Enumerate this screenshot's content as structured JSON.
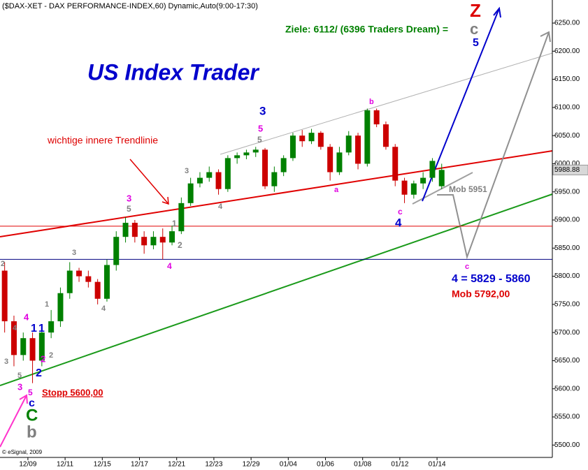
{
  "chart_data": {
    "type": "candlestick",
    "title": "($DAX-XET - DAX PERFORMANCE-INDEX,60) Dynamic,Auto(9:00-17:30)",
    "credit": "© eSignal, 2009",
    "x": [
      -1.25,
      -0.75,
      -0.25,
      0.25,
      0.75,
      1.25,
      1.75,
      2.25,
      2.75,
      3.25,
      3.75,
      4.25,
      4.75,
      5.25,
      5.75,
      6.25,
      6.75,
      7.25,
      7.75,
      8.25,
      8.75,
      9.25,
      9.75,
      10.25,
      10.75,
      11.25,
      11.75,
      12.25,
      12.75,
      13.25,
      13.75,
      14.25,
      14.75,
      15.25,
      15.75,
      16.25,
      16.75,
      17.25,
      17.75,
      18.25,
      18.75,
      19.25,
      19.75,
      20.25,
      20.75,
      21.25,
      21.75,
      22.25
    ],
    "open": [
      5810,
      5720,
      5660,
      5690,
      5650,
      5700,
      5720,
      5770,
      5810,
      5800,
      5790,
      5760,
      5820,
      5870,
      5895,
      5870,
      5855,
      5870,
      5860,
      5880,
      5930,
      5965,
      5975,
      5985,
      5955,
      6010,
      6015,
      6020,
      6025,
      5960,
      5985,
      6010,
      6050,
      6040,
      6055,
      6030,
      5985,
      6020,
      6050,
      6000,
      6095,
      6070,
      6030,
      5970,
      5945,
      5965,
      5975,
      5960
    ],
    "high": [
      5825,
      5730,
      5700,
      5700,
      5710,
      5740,
      5780,
      5825,
      5815,
      5810,
      5795,
      5830,
      5880,
      5905,
      5900,
      5880,
      5880,
      5885,
      5890,
      5940,
      5975,
      5985,
      5995,
      5990,
      6015,
      6020,
      6025,
      6030,
      6028,
      5995,
      6015,
      6055,
      6060,
      6062,
      6058,
      6035,
      6030,
      6058,
      6055,
      6098,
      6098,
      6075,
      6035,
      5975,
      5970,
      5985,
      6010,
      6000
    ],
    "low": [
      5700,
      5640,
      5650,
      5610,
      5640,
      5690,
      5710,
      5760,
      5790,
      5780,
      5750,
      5755,
      5810,
      5860,
      5860,
      5840,
      5848,
      5830,
      5855,
      5875,
      5925,
      5958,
      5968,
      5945,
      5950,
      6000,
      6008,
      6012,
      5955,
      5950,
      5978,
      6005,
      6030,
      6035,
      6025,
      5970,
      5980,
      6015,
      5990,
      5995,
      6065,
      6025,
      5960,
      5930,
      5938,
      5955,
      5968,
      5955
    ],
    "close": [
      5720,
      5660,
      5690,
      5650,
      5700,
      5720,
      5770,
      5810,
      5800,
      5790,
      5760,
      5820,
      5870,
      5895,
      5870,
      5855,
      5870,
      5860,
      5880,
      5930,
      5965,
      5975,
      5985,
      5955,
      6010,
      6015,
      6020,
      6025,
      5960,
      5985,
      6010,
      6050,
      6040,
      6055,
      6030,
      5985,
      6020,
      6050,
      6000,
      6095,
      6070,
      6030,
      5970,
      5945,
      5965,
      5975,
      6005,
      5989
    ],
    "up_color": "#008000",
    "down_color": "#cc0000",
    "last_value": 5988.88,
    "levels": [
      {
        "value": 5889,
        "color": "#e00000"
      },
      {
        "value": 5830,
        "color": "#000080"
      }
    ],
    "xlim": [
      -1.5,
      28.2
    ],
    "ylim": [
      5478,
      6291
    ],
    "xticks": [
      {
        "value": 0,
        "label": "12/09"
      },
      {
        "value": 2,
        "label": "12/11"
      },
      {
        "value": 4,
        "label": "12/15"
      },
      {
        "value": 6,
        "label": "12/17"
      },
      {
        "value": 8,
        "label": "12/21"
      },
      {
        "value": 10,
        "label": "12/23"
      },
      {
        "value": 12,
        "label": "12/29"
      },
      {
        "value": 14,
        "label": "01/04"
      },
      {
        "value": 16,
        "label": "01/06"
      },
      {
        "value": 18,
        "label": "01/08"
      },
      {
        "value": 20,
        "label": "01/12"
      },
      {
        "value": 22,
        "label": "01/14"
      }
    ],
    "yticks": [
      {
        "value": 5500,
        "label": "5500.00"
      },
      {
        "value": 5550,
        "label": "5550.00"
      },
      {
        "value": 5600,
        "label": "5600.00"
      },
      {
        "value": 5650,
        "label": "5650.00"
      },
      {
        "value": 5700,
        "label": "5700.00"
      },
      {
        "value": 5750,
        "label": "5750.00"
      },
      {
        "value": 5800,
        "label": "5800.00"
      },
      {
        "value": 5850,
        "label": "5850.00"
      },
      {
        "value": 5900,
        "label": "5900.00"
      },
      {
        "value": 5950,
        "label": "5950.00"
      },
      {
        "value": 6000,
        "label": "6000.00"
      },
      {
        "value": 6050,
        "label": "6050.00"
      },
      {
        "value": 6100,
        "label": "6100.00"
      },
      {
        "value": 6150,
        "label": "6150.00"
      },
      {
        "value": 6200,
        "label": "6200.00"
      },
      {
        "value": 6250,
        "label": "6250.00"
      }
    ],
    "annotations": [
      {
        "text": "US Index Trader",
        "color": "#0000cc"
      },
      {
        "text": "wichtige innere Trendlinie",
        "color": "#dd0000"
      },
      {
        "text": "Ziele: 6112/ (6396 Traders Dream) =",
        "color": "#008000"
      },
      {
        "text": "c",
        "color": "#808080"
      },
      {
        "text": "Z",
        "color": "#dd0000"
      },
      {
        "text": "5",
        "color": "#0000cc"
      },
      {
        "text": "3",
        "color": "#0000cc"
      },
      {
        "text": "5",
        "color": "#e000e0"
      },
      {
        "text": "5",
        "color": "#808080"
      },
      {
        "text": "3",
        "color": "#808080"
      },
      {
        "text": "4",
        "color": "#808080"
      },
      {
        "text": "3",
        "color": "#e000e0"
      },
      {
        "text": "5",
        "color": "#808080"
      },
      {
        "text": "1",
        "color": "#808080"
      },
      {
        "text": "2",
        "color": "#808080"
      },
      {
        "text": "4",
        "color": "#e000e0"
      },
      {
        "text": "3",
        "color": "#808080"
      },
      {
        "text": "4",
        "color": "#808080"
      },
      {
        "text": "b",
        "color": "#e000e0"
      },
      {
        "text": "a",
        "color": "#e000e0"
      },
      {
        "text": "c",
        "color": "#e000e0"
      },
      {
        "text": "4",
        "color": "#0000cc"
      },
      {
        "text": "Mob 5951",
        "color": "#808080"
      },
      {
        "text": "c",
        "color": "#e000e0"
      },
      {
        "text": "4 = 5829 - 5860",
        "color": "#0000cc"
      },
      {
        "text": "Mob 5792,00",
        "color": "#dd0000"
      },
      {
        "text": "4",
        "color": "#e000e0"
      },
      {
        "text": "1",
        "color": "#0000cc"
      },
      {
        "text": "1",
        "color": "#0000cc"
      },
      {
        "text": "1",
        "color": "#808080"
      },
      {
        "text": "4",
        "color": "#808080"
      },
      {
        "text": "3",
        "color": "#808080"
      },
      {
        "text": "2",
        "color": "#e000e0"
      },
      {
        "text": "2",
        "color": "#808080"
      },
      {
        "text": "5",
        "color": "#808080"
      },
      {
        "text": "2",
        "color": "#0000cc"
      },
      {
        "text": "3",
        "color": "#e000e0"
      },
      {
        "text": "5",
        "color": "#e000e0"
      },
      {
        "text": "Stopp 5600,00",
        "color": "#dd0000"
      },
      {
        "text": "c",
        "color": "#0000cc"
      },
      {
        "text": "C",
        "color": "#008000"
      },
      {
        "text": "b",
        "color": "#808080"
      },
      {
        "text": "2",
        "color": "#808080"
      }
    ]
  }
}
